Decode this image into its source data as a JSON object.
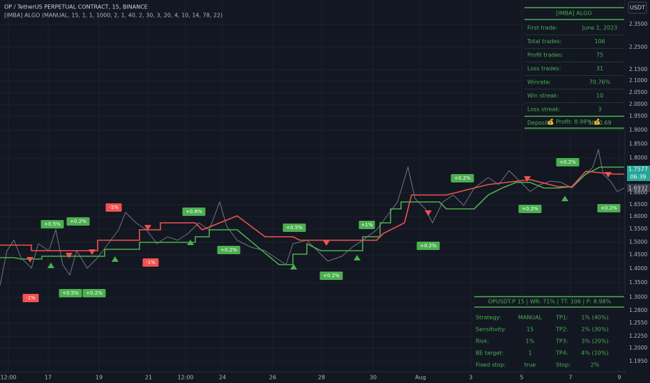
{
  "header": {
    "symbol": "OP / TetherUS PERPETUAL CONTRACT, 15, BINANCE",
    "indicator": "[IMBA] ALGO (MANUAL, 15, 1, 1, 1000, 2, 1, 40, 2, 30, 3, 20, 4, 10, 14, 78, 22)"
  },
  "stats_table": {
    "title": "[IMBA] ALGO",
    "rows": [
      [
        "First trade:",
        "June 1, 2023"
      ],
      [
        "Total trades:",
        "106"
      ],
      [
        "Profit trades:",
        "75"
      ],
      [
        "Loss trades:",
        "31"
      ],
      [
        "Winrate:",
        "70.76%"
      ],
      [
        "Win streak:",
        "10"
      ],
      [
        "Loss streak:",
        "3"
      ],
      [
        "Deposit:",
        "1090.69"
      ]
    ],
    "footer": "💰 Profit: 8.98% 💰"
  },
  "settings_table": {
    "title": "OPUSDT.P 15 | WR: 71% | TT: 106 | P: 8.98%",
    "rows": [
      [
        "Strategy:",
        "MANUAL",
        "TP1:",
        "1% (40%)"
      ],
      [
        "Sensitivity:",
        "15",
        "TP2:",
        "2% (30%)"
      ],
      [
        "Risk:",
        "1%",
        "TP3:",
        "3% (20%)"
      ],
      [
        "BE target:",
        "1",
        "TP4:",
        "4% (10%)"
      ],
      [
        "Fixed stop:",
        "true",
        "Stop:",
        "2%"
      ]
    ]
  },
  "price_axis": {
    "currency": "USDT",
    "ticks": [
      "2.3500",
      "2.2500",
      "2.1500",
      "2.1000",
      "2.0500",
      "2.0000",
      "1.9500",
      "1.9000",
      "1.8500",
      "1.8000",
      "1.6800",
      "1.6500",
      "1.6000",
      "1.5500",
      "1.5000",
      "1.4500",
      "1.4000",
      "1.3500",
      "1.3000",
      "1.2800",
      "1.2550",
      "1.2250",
      "1.2000",
      "1.1950"
    ],
    "last_price": "1.7577",
    "countdown": "06:39",
    "indicator_price": "1.6932"
  },
  "time_axis": {
    "ticks": [
      "12:00",
      "17",
      "19",
      "21",
      "12:00",
      "24",
      "26",
      "28",
      "30",
      "Aug",
      "3",
      "5",
      "7",
      "9"
    ]
  },
  "trade_labels": [
    "-1%",
    "+0.5%",
    "+0.2%",
    "+0.5%",
    "+0.2%",
    "-1%",
    "-1%",
    "+0.8%",
    "+0.2%",
    "+0.5%",
    "+0.2%",
    "+1%",
    "+0.2%",
    "+0.2%",
    "+0.2%",
    "+0.2%",
    "+0.2%"
  ]
}
